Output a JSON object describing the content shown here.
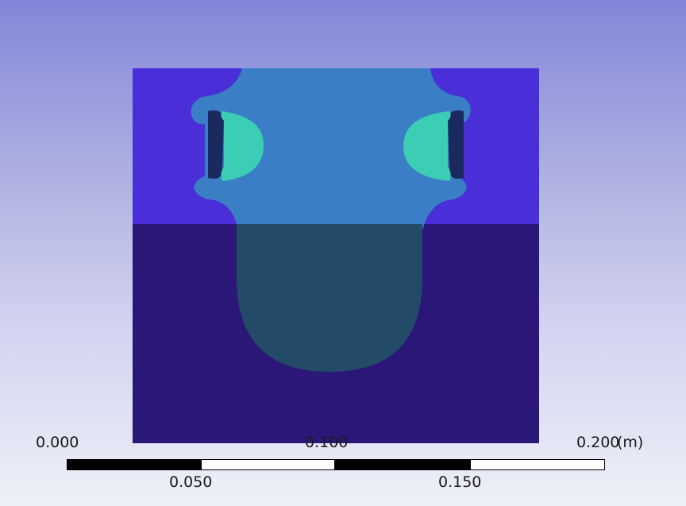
{
  "viewport": {
    "colors": {
      "background_top": "#8286da",
      "background_bottom": "#eef0f8",
      "outer_block": "#4a2fd8",
      "lower_block": "#2b1778",
      "body_fill": "#3a7fc6",
      "body_lower_fill": "#234a66",
      "hole_fill": "#3ccdb5"
    }
  },
  "scale_bar": {
    "label_0": "0.000",
    "label_1": "0.050",
    "label_2": "0.100",
    "label_3": "0.150",
    "label_4": "0.200",
    "unit": "(m)"
  }
}
